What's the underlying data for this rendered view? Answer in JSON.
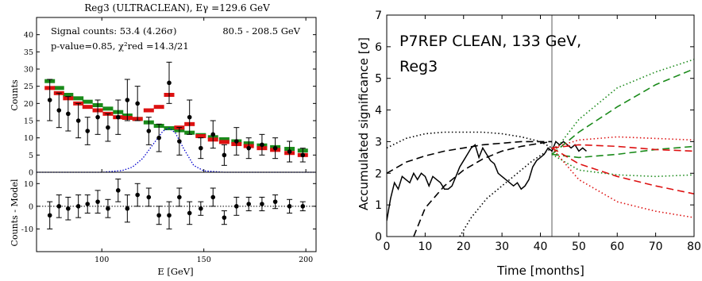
{
  "chart_data": [
    {
      "type": "scatter",
      "title": "Reg3 (ULTRACLEAN), Eγ =129.6 GeV",
      "annotations": {
        "signal_counts": "Signal counts: 53.4 (4.26σ)",
        "p_value": "p-value=0.85, χ²red =14.3/21",
        "energy_range": "80.5 - 208.5 GeV"
      },
      "xlabel": "E [GeV]",
      "xlim": [
        68,
        205
      ],
      "xticks": [
        "100",
        "150",
        "200"
      ],
      "top_panel": {
        "ylabel": "Counts",
        "ylim": [
          0,
          45
        ],
        "yticks": [
          "0",
          "5",
          "10",
          "15",
          "20",
          "25",
          "30",
          "35",
          "40"
        ],
        "x": [
          74.5,
          79,
          83.5,
          88.5,
          93,
          98,
          103,
          108,
          112.5,
          117.5,
          123,
          128,
          133,
          138,
          143,
          148.5,
          154.5,
          160,
          166,
          172,
          178.5,
          185,
          192,
          198.5
        ],
        "counts": [
          21,
          18,
          17,
          15,
          12,
          16,
          13,
          16,
          21,
          20,
          12,
          10,
          26,
          9,
          16,
          7,
          11,
          5,
          9,
          7,
          8,
          7,
          6,
          5
        ],
        "counts_err": [
          6,
          5,
          5,
          5,
          4,
          5,
          4,
          5,
          6,
          5,
          4,
          4,
          6,
          4,
          5,
          3,
          4,
          3,
          4,
          3,
          3,
          3,
          3,
          2
        ],
        "series": [
          {
            "name": "",
            "color": "#1a8a1a",
            "values": [
              26.5,
              24.5,
              22.5,
              21.5,
              20.5,
              19.5,
              18.5,
              17.5,
              16.5,
              15.5,
              14.5,
              13.5,
              12.8,
              12.2,
              11.5,
              10.8,
              10.2,
              9.6,
              9,
              8.4,
              7.8,
              7.3,
              6.8,
              6.3
            ]
          },
          {
            "name": "",
            "color": "#dd1111",
            "values": [
              24.5,
              23,
              21.5,
              20,
              19,
              18,
              17,
              16,
              15.8,
              15.5,
              18,
              19,
              22.5,
              13,
              14,
              10.5,
              9.5,
              8.8,
              8.2,
              7.6,
              7,
              6.5,
              5.6,
              5
            ]
          },
          {
            "name": "",
            "color": "#0000cc",
            "style": "dotted",
            "x": [
              68,
              100,
              110,
              115,
              120,
              125,
              130,
              133,
              136,
              140,
              145,
              150,
              160,
              205
            ],
            "values": [
              0,
              0,
              0.5,
              1.5,
              4,
              8,
              12,
              12.8,
              11.5,
              7,
              2,
              0.4,
              0,
              0
            ]
          }
        ]
      },
      "bottom_panel": {
        "ylabel": "Counts - Model",
        "ylim": [
          -20,
          15
        ],
        "yticks": [
          "-10",
          "0",
          "10"
        ],
        "x": [
          74.5,
          79,
          83.5,
          88.5,
          93,
          98,
          103,
          108,
          112.5,
          117.5,
          123,
          128,
          133,
          138,
          143,
          148.5,
          154.5,
          160,
          166,
          172,
          178.5,
          185,
          192,
          198.5
        ],
        "residuals": [
          -4,
          0,
          -1,
          0,
          1,
          2,
          -1,
          7,
          -1,
          5,
          4,
          -4,
          -4,
          4,
          -3,
          -1,
          4,
          -5,
          0,
          1,
          1,
          2,
          0,
          0
        ],
        "residuals_err": [
          6,
          5,
          5,
          5,
          4,
          5,
          4,
          5,
          6,
          5,
          4,
          4,
          6,
          4,
          5,
          3,
          4,
          3,
          4,
          3,
          3,
          3,
          3,
          2
        ]
      }
    },
    {
      "type": "line",
      "title": "P7REP CLEAN, 133 GeV,",
      "title_line2": "Reg3",
      "xlabel": "Time [months]",
      "ylabel": "Accumulated significance [σ]",
      "xlim": [
        0,
        80
      ],
      "ylim": [
        0,
        7
      ],
      "xticks": [
        "0",
        "10",
        "20",
        "30",
        "40",
        "50",
        "60",
        "70",
        "80"
      ],
      "yticks": [
        "0",
        "1",
        "2",
        "3",
        "4",
        "5",
        "6",
        "7"
      ],
      "vline_x": 43,
      "series": [
        {
          "name": "",
          "color": "#000000",
          "style": "solid",
          "x": [
            0,
            1,
            2,
            3,
            4,
            5,
            6,
            7,
            8,
            9,
            10,
            11,
            12,
            13,
            14,
            15,
            16,
            17,
            18,
            19,
            20,
            21,
            22,
            23,
            24,
            25,
            26,
            27,
            28,
            29,
            30,
            31,
            32,
            33,
            34,
            35,
            36,
            37,
            38,
            39,
            40,
            41,
            42,
            43,
            44,
            45,
            46,
            47,
            48,
            49,
            50,
            51,
            52
          ],
          "values": [
            0.5,
            1.2,
            1.7,
            1.5,
            1.9,
            1.8,
            1.7,
            2.0,
            1.8,
            2.0,
            1.9,
            1.6,
            1.9,
            1.8,
            1.7,
            1.5,
            1.5,
            1.6,
            1.9,
            2.2,
            2.4,
            2.6,
            2.8,
            2.9,
            2.5,
            2.8,
            2.6,
            2.4,
            2.3,
            2.0,
            1.9,
            1.8,
            1.7,
            1.6,
            1.7,
            1.5,
            1.6,
            1.8,
            2.2,
            2.4,
            2.5,
            2.6,
            2.8,
            2.7,
            3.0,
            2.9,
            3.0,
            2.9,
            2.8,
            2.9,
            2.7,
            2.8,
            2.7
          ]
        },
        {
          "name": "",
          "color": "#000000",
          "style": "dashed",
          "x": [
            7,
            10,
            15,
            20,
            25,
            30,
            35,
            40,
            43
          ],
          "values": [
            0,
            0.9,
            1.6,
            2.1,
            2.45,
            2.7,
            2.85,
            2.95,
            3.0
          ]
        },
        {
          "name": "",
          "color": "#000000",
          "style": "dashed",
          "x": [
            0,
            5,
            10,
            15,
            20,
            25,
            30,
            35,
            40,
            43
          ],
          "values": [
            2.0,
            2.35,
            2.55,
            2.7,
            2.8,
            2.9,
            2.95,
            3.0,
            3.0,
            3.0
          ]
        },
        {
          "name": "",
          "color": "#000000",
          "style": "dotted",
          "x": [
            0,
            5,
            10,
            15,
            20,
            25,
            30,
            35,
            40,
            43
          ],
          "values": [
            2.8,
            3.1,
            3.25,
            3.3,
            3.3,
            3.3,
            3.25,
            3.15,
            3.0,
            2.8
          ]
        },
        {
          "name": "",
          "color": "#000000",
          "style": "dotted",
          "x": [
            19,
            22,
            26,
            30,
            34,
            38,
            43
          ],
          "values": [
            0,
            0.6,
            1.2,
            1.6,
            2.0,
            2.4,
            2.8
          ]
        },
        {
          "name": "",
          "color": "#1a8a1a",
          "style": "dashed",
          "x": [
            43,
            50,
            60,
            70,
            80
          ],
          "values": [
            2.6,
            3.3,
            4.1,
            4.8,
            5.3
          ]
        },
        {
          "name": "",
          "color": "#1a8a1a",
          "style": "dashed",
          "x": [
            43,
            50,
            60,
            70,
            80
          ],
          "values": [
            2.6,
            2.5,
            2.6,
            2.75,
            2.85
          ]
        },
        {
          "name": "",
          "color": "#1a8a1a",
          "style": "dotted",
          "x": [
            43,
            50,
            60,
            70,
            80
          ],
          "values": [
            2.6,
            3.7,
            4.7,
            5.2,
            5.6
          ]
        },
        {
          "name": "",
          "color": "#1a8a1a",
          "style": "dotted",
          "x": [
            43,
            50,
            60,
            70,
            80
          ],
          "values": [
            2.6,
            2.1,
            1.95,
            1.9,
            1.95
          ]
        },
        {
          "name": "",
          "color": "#dd1111",
          "style": "dashed",
          "x": [
            43,
            50,
            60,
            70,
            80
          ],
          "values": [
            2.8,
            2.9,
            2.85,
            2.75,
            2.7
          ]
        },
        {
          "name": "",
          "color": "#dd1111",
          "style": "dashed",
          "x": [
            43,
            50,
            60,
            70,
            80
          ],
          "values": [
            2.8,
            2.3,
            1.9,
            1.6,
            1.35
          ]
        },
        {
          "name": "",
          "color": "#dd1111",
          "style": "dotted",
          "x": [
            43,
            50,
            60,
            70,
            80
          ],
          "values": [
            2.8,
            3.05,
            3.15,
            3.1,
            3.05
          ]
        },
        {
          "name": "",
          "color": "#dd1111",
          "style": "dotted",
          "x": [
            43,
            50,
            60,
            70,
            80
          ],
          "values": [
            2.8,
            1.8,
            1.1,
            0.8,
            0.6
          ]
        }
      ]
    }
  ]
}
